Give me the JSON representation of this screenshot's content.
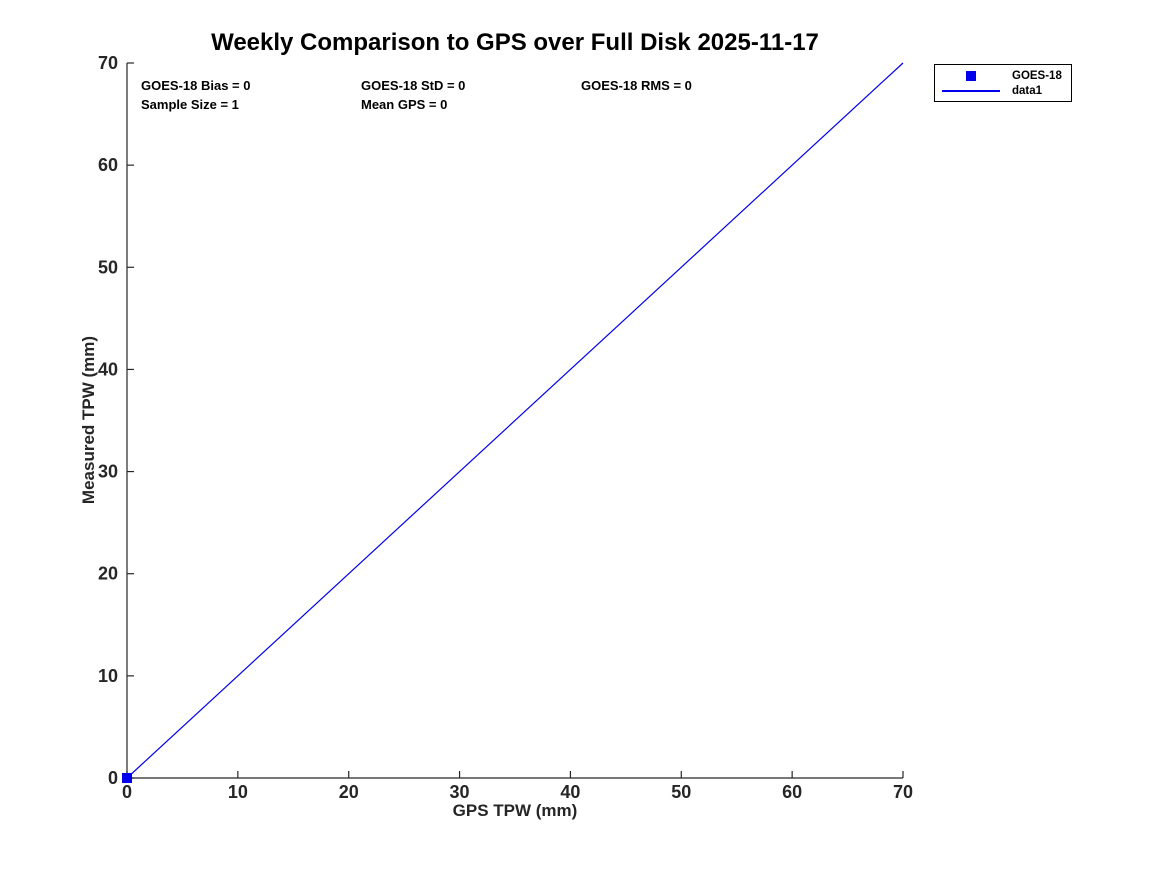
{
  "figure": {
    "background": "#FFFFFF"
  },
  "chart_data": {
    "type": "scatter",
    "title": "Weekly Comparison to GPS over Full Disk 2025-11-17",
    "xlabel": "GPS TPW (mm)",
    "ylabel": "Measured TPW (mm)",
    "xlim": [
      0,
      70
    ],
    "ylim": [
      0,
      70
    ],
    "xticks": [
      0,
      10,
      20,
      30,
      40,
      50,
      60,
      70
    ],
    "yticks": [
      0,
      10,
      20,
      30,
      40,
      50,
      60,
      70
    ],
    "grid": false,
    "box": false,
    "axis_color": "#262626",
    "series": [
      {
        "name": "GOES-18",
        "type": "scatter",
        "marker": "square",
        "color": "#0000EE",
        "points": [
          [
            0,
            0
          ]
        ]
      },
      {
        "name": "data1",
        "type": "line",
        "color": "#0000EE",
        "points": [
          [
            0,
            0
          ],
          [
            70,
            70
          ]
        ]
      }
    ],
    "annotations": [
      {
        "text": "GOES-18 Bias = 0"
      },
      {
        "text": "GOES-18 StD = 0"
      },
      {
        "text": "GOES-18 RMS = 0"
      },
      {
        "text": "Sample Size = 1"
      },
      {
        "text": "Mean GPS = 0"
      }
    ],
    "legend_position": "outside-top-right"
  },
  "legend": {
    "items": [
      {
        "label": "GOES-18",
        "glyph": "square-marker",
        "color": "#0000EE"
      },
      {
        "label": "data1",
        "glyph": "line",
        "color": "#0000EE"
      }
    ]
  }
}
